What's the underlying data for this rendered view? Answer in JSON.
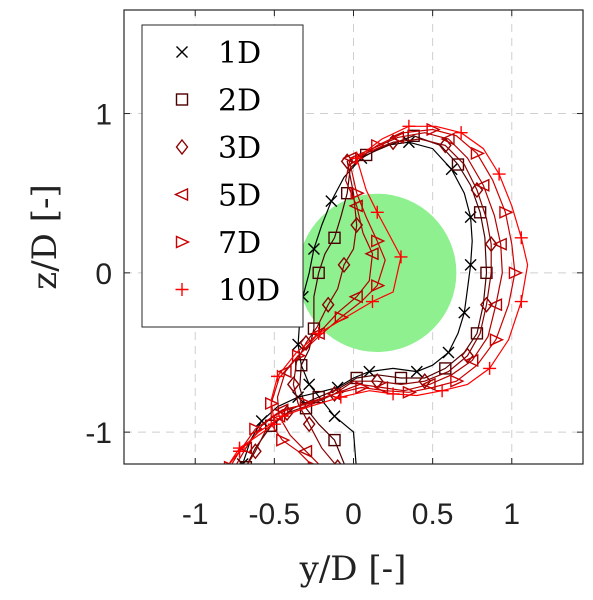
{
  "chart_data": {
    "type": "line",
    "xlabel": "y/D [-]",
    "ylabel": "z/D [-]",
    "xlim": [
      -1.45,
      1.45
    ],
    "ylim": [
      -1.2,
      1.65
    ],
    "x_ticks": [
      -1,
      -0.5,
      0,
      0.5,
      1
    ],
    "x_tick_labels": [
      "-1",
      "-0.5",
      "0",
      "0.5",
      "1"
    ],
    "y_ticks": [
      -1,
      0,
      1
    ],
    "y_tick_labels": [
      "-1",
      "0",
      "1"
    ],
    "grid": true,
    "legend_position": "top-left",
    "annotations": [
      {
        "type": "circle",
        "center": [
          0.15,
          0
        ],
        "radius": 0.5,
        "color": "#8ef08e"
      }
    ],
    "series": [
      {
        "name": "1D",
        "marker": "x",
        "color": "#000000",
        "points": [
          [
            0.02,
            -1.25
          ],
          [
            0.0,
            -1.0
          ],
          [
            -0.12,
            -0.9
          ],
          [
            -0.2,
            -0.8
          ],
          [
            -0.28,
            -0.7
          ],
          [
            -0.33,
            -0.58
          ],
          [
            -0.35,
            -0.45
          ],
          [
            -0.34,
            -0.3
          ],
          [
            -0.32,
            -0.15
          ],
          [
            -0.28,
            0.0
          ],
          [
            -0.25,
            0.15
          ],
          [
            -0.2,
            0.3
          ],
          [
            -0.14,
            0.45
          ],
          [
            -0.06,
            0.6
          ],
          [
            0.05,
            0.72
          ],
          [
            0.2,
            0.8
          ],
          [
            0.35,
            0.82
          ],
          [
            0.5,
            0.78
          ],
          [
            0.62,
            0.65
          ],
          [
            0.7,
            0.5
          ],
          [
            0.74,
            0.35
          ],
          [
            0.75,
            0.2
          ],
          [
            0.74,
            0.05
          ],
          [
            0.72,
            -0.1
          ],
          [
            0.7,
            -0.25
          ],
          [
            0.66,
            -0.38
          ],
          [
            0.6,
            -0.5
          ],
          [
            0.5,
            -0.58
          ],
          [
            0.4,
            -0.62
          ],
          [
            0.25,
            -0.6
          ],
          [
            0.1,
            -0.62
          ],
          [
            0.0,
            -0.66
          ],
          [
            -0.1,
            -0.72
          ],
          [
            -0.22,
            -0.75
          ],
          [
            -0.35,
            -0.78
          ],
          [
            -0.48,
            -0.84
          ],
          [
            -0.58,
            -0.93
          ],
          [
            -0.65,
            -1.05
          ],
          [
            -0.7,
            -1.2
          ]
        ]
      },
      {
        "name": "2D",
        "marker": "square",
        "color": "#4d0000",
        "points": [
          [
            -0.05,
            -1.22
          ],
          [
            -0.12,
            -1.05
          ],
          [
            -0.22,
            -0.95
          ],
          [
            -0.3,
            -0.85
          ],
          [
            -0.34,
            -0.72
          ],
          [
            -0.33,
            -0.58
          ],
          [
            -0.28,
            -0.48
          ],
          [
            -0.25,
            -0.35
          ],
          [
            -0.25,
            -0.15
          ],
          [
            -0.22,
            0.0
          ],
          [
            -0.18,
            0.12
          ],
          [
            -0.12,
            0.22
          ],
          [
            -0.08,
            0.35
          ],
          [
            -0.04,
            0.5
          ],
          [
            -0.02,
            0.66
          ],
          [
            0.08,
            0.74
          ],
          [
            0.22,
            0.8
          ],
          [
            0.38,
            0.86
          ],
          [
            0.55,
            0.8
          ],
          [
            0.66,
            0.68
          ],
          [
            0.74,
            0.55
          ],
          [
            0.8,
            0.38
          ],
          [
            0.83,
            0.22
          ],
          [
            0.84,
            0.0
          ],
          [
            0.82,
            -0.2
          ],
          [
            0.78,
            -0.38
          ],
          [
            0.7,
            -0.5
          ],
          [
            0.58,
            -0.6
          ],
          [
            0.45,
            -0.66
          ],
          [
            0.3,
            -0.66
          ],
          [
            0.15,
            -0.64
          ],
          [
            0.02,
            -0.66
          ],
          [
            -0.1,
            -0.73
          ],
          [
            -0.22,
            -0.78
          ],
          [
            -0.38,
            -0.85
          ],
          [
            -0.52,
            -0.96
          ],
          [
            -0.62,
            -1.1
          ],
          [
            -0.68,
            -1.22
          ]
        ]
      },
      {
        "name": "3D",
        "marker": "diamond",
        "color": "#8b0000",
        "points": [
          [
            -0.1,
            -1.22
          ],
          [
            -0.2,
            -1.1
          ],
          [
            -0.28,
            -0.95
          ],
          [
            -0.35,
            -0.82
          ],
          [
            -0.38,
            -0.7
          ],
          [
            -0.36,
            -0.56
          ],
          [
            -0.3,
            -0.44
          ],
          [
            -0.23,
            -0.34
          ],
          [
            -0.16,
            -0.2
          ],
          [
            -0.1,
            -0.1
          ],
          [
            -0.06,
            0.05
          ],
          [
            0.0,
            0.15
          ],
          [
            0.02,
            0.3
          ],
          [
            0.0,
            0.5
          ],
          [
            -0.04,
            0.7
          ],
          [
            0.1,
            0.76
          ],
          [
            0.25,
            0.82
          ],
          [
            0.42,
            0.84
          ],
          [
            0.58,
            0.8
          ],
          [
            0.7,
            0.68
          ],
          [
            0.78,
            0.52
          ],
          [
            0.84,
            0.34
          ],
          [
            0.87,
            0.18
          ],
          [
            0.87,
            0.0
          ],
          [
            0.84,
            -0.2
          ],
          [
            0.8,
            -0.38
          ],
          [
            0.72,
            -0.52
          ],
          [
            0.6,
            -0.62
          ],
          [
            0.45,
            -0.68
          ],
          [
            0.3,
            -0.7
          ],
          [
            0.15,
            -0.68
          ],
          [
            0.0,
            -0.68
          ],
          [
            -0.12,
            -0.76
          ],
          [
            -0.25,
            -0.82
          ],
          [
            -0.42,
            -0.88
          ],
          [
            -0.55,
            -0.98
          ],
          [
            -0.62,
            -1.12
          ],
          [
            -0.68,
            -1.22
          ]
        ]
      },
      {
        "name": "5D",
        "marker": "triangle-left",
        "color": "#b30000",
        "points": [
          [
            -0.2,
            -1.22
          ],
          [
            -0.3,
            -1.12
          ],
          [
            -0.4,
            -1.02
          ],
          [
            -0.47,
            -0.9
          ],
          [
            -0.48,
            -0.78
          ],
          [
            -0.43,
            -0.62
          ],
          [
            -0.33,
            -0.5
          ],
          [
            -0.22,
            -0.38
          ],
          [
            -0.1,
            -0.25
          ],
          [
            0.02,
            -0.15
          ],
          [
            0.1,
            -0.05
          ],
          [
            0.12,
            0.12
          ],
          [
            0.06,
            0.25
          ],
          [
            0.02,
            0.42
          ],
          [
            -0.05,
            0.58
          ],
          [
            -0.02,
            0.72
          ],
          [
            0.12,
            0.78
          ],
          [
            0.28,
            0.85
          ],
          [
            0.45,
            0.88
          ],
          [
            0.6,
            0.84
          ],
          [
            0.72,
            0.72
          ],
          [
            0.82,
            0.55
          ],
          [
            0.89,
            0.36
          ],
          [
            0.93,
            0.18
          ],
          [
            0.94,
            0.0
          ],
          [
            0.9,
            -0.2
          ],
          [
            0.85,
            -0.4
          ],
          [
            0.75,
            -0.55
          ],
          [
            0.62,
            -0.64
          ],
          [
            0.48,
            -0.7
          ],
          [
            0.32,
            -0.74
          ],
          [
            0.18,
            -0.72
          ],
          [
            0.04,
            -0.7
          ],
          [
            -0.12,
            -0.76
          ],
          [
            -0.28,
            -0.82
          ],
          [
            -0.45,
            -0.86
          ],
          [
            -0.58,
            -0.96
          ],
          [
            -0.68,
            -1.1
          ],
          [
            -0.75,
            -1.22
          ]
        ]
      },
      {
        "name": "7D",
        "marker": "triangle-right",
        "color": "#cc0000",
        "points": [
          [
            -0.25,
            -1.22
          ],
          [
            -0.35,
            -1.12
          ],
          [
            -0.45,
            -1.05
          ],
          [
            -0.52,
            -0.95
          ],
          [
            -0.52,
            -0.82
          ],
          [
            -0.47,
            -0.66
          ],
          [
            -0.35,
            -0.52
          ],
          [
            -0.22,
            -0.4
          ],
          [
            -0.08,
            -0.28
          ],
          [
            0.05,
            -0.18
          ],
          [
            0.15,
            -0.08
          ],
          [
            0.2,
            0.08
          ],
          [
            0.15,
            0.2
          ],
          [
            0.08,
            0.35
          ],
          [
            0.02,
            0.5
          ],
          [
            -0.02,
            0.68
          ],
          [
            0.15,
            0.8
          ],
          [
            0.32,
            0.88
          ],
          [
            0.5,
            0.9
          ],
          [
            0.65,
            0.86
          ],
          [
            0.78,
            0.75
          ],
          [
            0.88,
            0.58
          ],
          [
            0.96,
            0.38
          ],
          [
            1.0,
            0.18
          ],
          [
            1.02,
            0.0
          ],
          [
            0.98,
            -0.2
          ],
          [
            0.9,
            -0.42
          ],
          [
            0.78,
            -0.58
          ],
          [
            0.65,
            -0.68
          ],
          [
            0.5,
            -0.72
          ],
          [
            0.35,
            -0.75
          ],
          [
            0.2,
            -0.74
          ],
          [
            0.05,
            -0.72
          ],
          [
            -0.12,
            -0.76
          ],
          [
            -0.3,
            -0.82
          ],
          [
            -0.48,
            -0.88
          ],
          [
            -0.62,
            -0.98
          ],
          [
            -0.72,
            -1.12
          ],
          [
            -0.78,
            -1.22
          ]
        ]
      },
      {
        "name": "10D",
        "marker": "plus",
        "color": "#ff0000",
        "points": [
          [
            -0.8,
            -1.22
          ],
          [
            -0.72,
            -1.1
          ],
          [
            -0.6,
            -1.02
          ],
          [
            -0.5,
            -0.95
          ],
          [
            -0.52,
            -0.8
          ],
          [
            -0.48,
            -0.65
          ],
          [
            -0.36,
            -0.5
          ],
          [
            -0.22,
            -0.38
          ],
          [
            -0.05,
            -0.28
          ],
          [
            0.12,
            -0.18
          ],
          [
            0.25,
            -0.12
          ],
          [
            0.3,
            0.1
          ],
          [
            0.22,
            0.25
          ],
          [
            0.15,
            0.38
          ],
          [
            0.08,
            0.52
          ],
          [
            0.02,
            0.72
          ],
          [
            0.18,
            0.84
          ],
          [
            0.35,
            0.92
          ],
          [
            0.52,
            0.92
          ],
          [
            0.68,
            0.88
          ],
          [
            0.82,
            0.78
          ],
          [
            0.92,
            0.62
          ],
          [
            1.0,
            0.42
          ],
          [
            1.06,
            0.22
          ],
          [
            1.1,
            0.05
          ],
          [
            1.06,
            -0.18
          ],
          [
            0.98,
            -0.42
          ],
          [
            0.86,
            -0.6
          ],
          [
            0.72,
            -0.7
          ],
          [
            0.56,
            -0.74
          ],
          [
            0.4,
            -0.77
          ],
          [
            0.25,
            -0.76
          ],
          [
            0.1,
            -0.74
          ],
          [
            -0.08,
            -0.78
          ],
          [
            -0.28,
            -0.84
          ],
          [
            -0.45,
            -0.9
          ],
          [
            -0.6,
            -1.0
          ],
          [
            -0.72,
            -1.12
          ],
          [
            -0.8,
            -1.22
          ]
        ]
      }
    ],
    "legend": [
      {
        "symbol": "×",
        "label": "1D"
      },
      {
        "symbol": "□",
        "label": "2D"
      },
      {
        "symbol": "◇",
        "label": "3D"
      },
      {
        "symbol": "◁",
        "label": "5D"
      },
      {
        "symbol": "▷",
        "label": "7D"
      },
      {
        "symbol": "+",
        "label": "10D"
      }
    ]
  }
}
